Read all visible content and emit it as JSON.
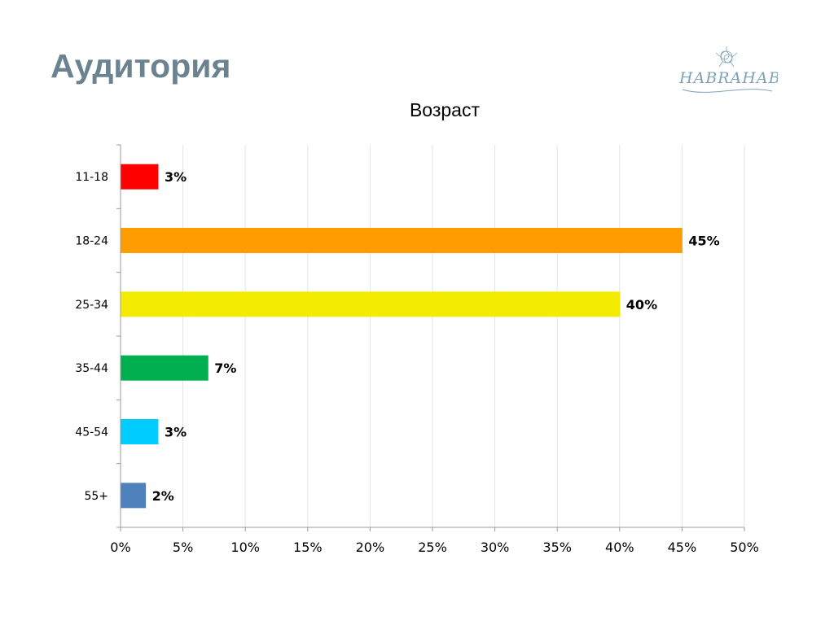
{
  "slide": {
    "title": "Аудитория"
  },
  "logo": {
    "text": "HABRAHABR",
    "color": "#7fa2b6"
  },
  "chart_data": {
    "type": "bar",
    "orientation": "horizontal",
    "title": "Возраст",
    "categories": [
      "11-18",
      "18-24",
      "25-34",
      "35-44",
      "45-54",
      "55+"
    ],
    "values": [
      3,
      45,
      40,
      7,
      3,
      2
    ],
    "data_labels": [
      "3%",
      "45%",
      "40%",
      "7%",
      "3%",
      "2%"
    ],
    "colors": [
      "#ff0000",
      "#ff9c00",
      "#f4ec00",
      "#00b050",
      "#00ccff",
      "#4f81bd"
    ],
    "xlim": [
      0,
      50
    ],
    "x_ticks": [
      0,
      5,
      10,
      15,
      20,
      25,
      30,
      35,
      40,
      45,
      50
    ],
    "x_tick_labels": [
      "0%",
      "5%",
      "10%",
      "15%",
      "20%",
      "25%",
      "30%",
      "35%",
      "40%",
      "45%",
      "50%"
    ],
    "xlabel": "",
    "ylabel": "",
    "grid": true,
    "legend": "none"
  }
}
